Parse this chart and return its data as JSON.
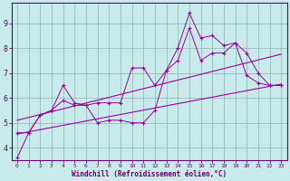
{
  "title": "",
  "xlabel": "Windchill (Refroidissement éolien,°C)",
  "ylabel": "",
  "bg_color": "#c8eaea",
  "line_color": "#990099",
  "grid_color": "#99bbbb",
  "axis_color": "#660066",
  "text_color": "#660066",
  "xlim": [
    -0.5,
    23.5
  ],
  "ylim": [
    3.5,
    9.8
  ],
  "xticks": [
    0,
    1,
    2,
    3,
    4,
    5,
    6,
    7,
    8,
    9,
    10,
    11,
    12,
    13,
    14,
    15,
    16,
    17,
    18,
    19,
    20,
    21,
    22,
    23
  ],
  "yticks": [
    4,
    5,
    6,
    7,
    8,
    9
  ],
  "series": [
    {
      "x": [
        0,
        1,
        2,
        3,
        4,
        5,
        6,
        7,
        8,
        9,
        10,
        11,
        12,
        13,
        14,
        15,
        16,
        17,
        18,
        19,
        20,
        21,
        22,
        23
      ],
      "y": [
        3.6,
        4.6,
        5.3,
        5.5,
        6.5,
        5.8,
        5.7,
        5.0,
        5.1,
        5.1,
        5.0,
        5.0,
        5.5,
        7.1,
        8.0,
        9.4,
        8.4,
        8.5,
        8.1,
        8.2,
        6.9,
        6.6,
        6.5,
        6.5
      ],
      "marker": "+"
    },
    {
      "x": [
        0,
        1,
        2,
        3,
        4,
        5,
        6,
        7,
        8,
        9,
        10,
        11,
        12,
        13,
        14,
        15,
        16,
        17,
        18,
        19,
        20,
        21,
        22,
        23
      ],
      "y": [
        4.6,
        4.6,
        5.3,
        5.5,
        5.9,
        5.7,
        5.7,
        5.8,
        5.8,
        5.8,
        7.2,
        7.2,
        6.5,
        7.1,
        7.5,
        8.8,
        7.5,
        7.8,
        7.8,
        8.2,
        7.8,
        7.0,
        6.5,
        6.5
      ],
      "marker": "+"
    },
    {
      "x": [
        0,
        23
      ],
      "y": [
        4.55,
        6.55
      ],
      "marker": null
    },
    {
      "x": [
        0,
        23
      ],
      "y": [
        5.1,
        7.75
      ],
      "marker": null
    }
  ]
}
